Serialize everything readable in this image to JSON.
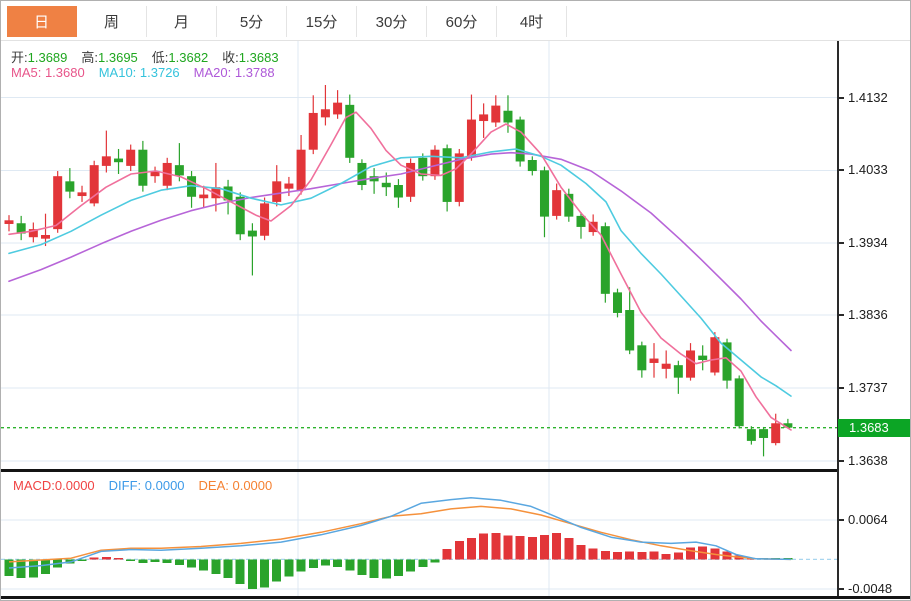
{
  "ui": {
    "tabs": [
      {
        "label": "日",
        "active": true
      },
      {
        "label": "周",
        "active": false
      },
      {
        "label": "月",
        "active": false
      },
      {
        "label": "5分",
        "active": false
      },
      {
        "label": "15分",
        "active": false
      },
      {
        "label": "30分",
        "active": false
      },
      {
        "label": "60分",
        "active": false
      },
      {
        "label": "4时",
        "active": false
      }
    ],
    "ohlc_legend": [
      {
        "label": "开:",
        "value": "1.3689"
      },
      {
        "label": "高:",
        "value": "1.3695"
      },
      {
        "label": "低:",
        "value": "1.3682"
      },
      {
        "label": "收:",
        "value": "1.3683"
      }
    ],
    "ma_legend": [
      {
        "text": "MA5: 1.3680",
        "color": "#e8558a"
      },
      {
        "text": "MA10: 1.3726",
        "color": "#35c3dc"
      },
      {
        "text": "MA20: 1.3788",
        "color": "#ae58d8"
      }
    ],
    "macd_legend": [
      {
        "text": "MACD:0.0000",
        "color": "#f04343"
      },
      {
        "text": "DIFF: 0.0000",
        "color": "#3d9ae8"
      },
      {
        "text": "DEA: 0.0000",
        "color": "#f58233"
      }
    ],
    "price_axis_labels": [
      "1.4132",
      "1.4033",
      "1.3934",
      "1.3836",
      "1.3737",
      "1.3638"
    ],
    "macd_axis_labels": [
      "0.0064",
      "-0.0048"
    ],
    "current_price_label": "1.3683",
    "colors": {
      "up": "#e23539",
      "down": "#2aa32b",
      "ma5": "#f0709c",
      "ma10": "#4ecbe0",
      "ma20": "#b765d8",
      "diff": "#5aa7e0",
      "dea": "#f5913c",
      "grid": "#dfe9f3",
      "zero_dash": "#a8d6ef",
      "price_dash": "#2db32d",
      "badge": "#0ca525",
      "tab_active": "#ef8144"
    }
  },
  "chart_data": {
    "type": "candlestick",
    "price_panel": {
      "title": "",
      "y_ticks": [
        1.4132,
        1.4033,
        1.3934,
        1.3836,
        1.3737,
        1.3638
      ],
      "current_price": 1.3683,
      "grid": true,
      "vertical_gridlines_x": [
        297,
        548
      ],
      "axis_layout": {
        "top_tick_y": 96.5,
        "tick_spacing_px": 72.8,
        "tick_step_value": 0.0099
      },
      "candles_ohlc": [
        [
          1.396,
          1.3972,
          1.395,
          1.3965
        ],
        [
          1.3961,
          1.3971,
          1.3938,
          1.3947
        ],
        [
          1.3942,
          1.3962,
          1.3935,
          1.3953
        ],
        [
          1.394,
          1.3974,
          1.393,
          1.3945
        ],
        [
          1.3953,
          1.4032,
          1.3948,
          1.4025
        ],
        [
          1.4018,
          1.4036,
          1.3995,
          1.4004
        ],
        [
          1.3998,
          1.4012,
          1.399,
          1.4003
        ],
        [
          1.3988,
          1.4046,
          1.3984,
          1.404
        ],
        [
          1.4039,
          1.4087,
          1.403,
          1.4052
        ],
        [
          1.4049,
          1.4062,
          1.4028,
          1.4044
        ],
        [
          1.4039,
          1.4068,
          1.4032,
          1.4061
        ],
        [
          1.4061,
          1.4073,
          1.4004,
          1.4012
        ],
        [
          1.4025,
          1.4038,
          1.4016,
          1.4031
        ],
        [
          1.4012,
          1.405,
          1.4006,
          1.4043
        ],
        [
          1.404,
          1.407,
          1.4018,
          1.4026
        ],
        [
          1.4025,
          1.4032,
          1.3982,
          1.3997
        ],
        [
          1.3995,
          1.4012,
          1.3983,
          1.4
        ],
        [
          1.3995,
          1.4043,
          1.3977,
          1.401
        ],
        [
          1.4011,
          1.402,
          1.3973,
          1.3992
        ],
        [
          1.3997,
          1.4003,
          1.3938,
          1.3946
        ],
        [
          1.3951,
          1.3961,
          1.389,
          1.3943
        ],
        [
          1.3944,
          1.3996,
          1.3938,
          1.3988
        ],
        [
          1.399,
          1.404,
          1.3984,
          1.4018
        ],
        [
          1.4008,
          1.4024,
          1.3998,
          1.4015
        ],
        [
          1.4006,
          1.4081,
          1.4,
          1.4061
        ],
        [
          1.4061,
          1.4135,
          1.4055,
          1.4111
        ],
        [
          1.4105,
          1.4149,
          1.4094,
          1.4116
        ],
        [
          1.4109,
          1.4142,
          1.4103,
          1.4125
        ],
        [
          1.4122,
          1.4136,
          1.4043,
          1.405
        ],
        [
          1.4043,
          1.4048,
          1.4006,
          1.4013
        ],
        [
          1.4025,
          1.4036,
          1.4001,
          1.4018
        ],
        [
          1.4016,
          1.403,
          1.3998,
          1.401
        ],
        [
          1.4013,
          1.4021,
          1.3982,
          1.3996
        ],
        [
          1.3997,
          1.4049,
          1.399,
          1.4043
        ],
        [
          1.405,
          1.4056,
          1.4019,
          1.4025
        ],
        [
          1.4025,
          1.4067,
          1.402,
          1.4061
        ],
        [
          1.4063,
          1.4068,
          1.3977,
          1.399
        ],
        [
          1.399,
          1.4062,
          1.3984,
          1.4056
        ],
        [
          1.4052,
          1.4136,
          1.4046,
          1.4102
        ],
        [
          1.41,
          1.4124,
          1.4077,
          1.4109
        ],
        [
          1.4098,
          1.4135,
          1.4092,
          1.4121
        ],
        [
          1.4114,
          1.4135,
          1.4084,
          1.4098
        ],
        [
          1.4102,
          1.4106,
          1.4038,
          1.4045
        ],
        [
          1.4047,
          1.4052,
          1.4026,
          1.4032
        ],
        [
          1.4033,
          1.4038,
          1.3942,
          1.397
        ],
        [
          1.3971,
          1.4015,
          1.3966,
          1.4006
        ],
        [
          1.4001,
          1.4008,
          1.3963,
          1.397
        ],
        [
          1.3971,
          1.3976,
          1.394,
          1.3956
        ],
        [
          1.3949,
          1.3973,
          1.3944,
          1.3963
        ],
        [
          1.3957,
          1.3962,
          1.3853,
          1.3865
        ],
        [
          1.3867,
          1.3872,
          1.3833,
          1.3839
        ],
        [
          1.3843,
          1.3874,
          1.3783,
          1.3788
        ],
        [
          1.3795,
          1.38,
          1.3751,
          1.3761
        ],
        [
          1.3771,
          1.3798,
          1.3751,
          1.3777
        ],
        [
          1.3763,
          1.3788,
          1.375,
          1.377
        ],
        [
          1.3768,
          1.3774,
          1.3729,
          1.3751
        ],
        [
          1.3751,
          1.3798,
          1.3747,
          1.3788
        ],
        [
          1.3781,
          1.3795,
          1.3761,
          1.3775
        ],
        [
          1.3758,
          1.3813,
          1.3754,
          1.3806
        ],
        [
          1.3799,
          1.3804,
          1.3736,
          1.3747
        ],
        [
          1.375,
          1.3754,
          1.3682,
          1.3685
        ],
        [
          1.3681,
          1.3685,
          1.366,
          1.3665
        ],
        [
          1.3681,
          1.3684,
          1.3644,
          1.3669
        ],
        [
          1.3662,
          1.3702,
          1.3659,
          1.3689
        ],
        [
          1.3689,
          1.3695,
          1.3682,
          1.3683
        ]
      ],
      "ma5_points": [
        [
          8,
          1.3946
        ],
        [
          30,
          1.395
        ],
        [
          55,
          1.3958
        ],
        [
          80,
          1.3985
        ],
        [
          105,
          1.401
        ],
        [
          130,
          1.4028
        ],
        [
          155,
          1.4032
        ],
        [
          180,
          1.4024
        ],
        [
          205,
          1.4008
        ],
        [
          230,
          1.399
        ],
        [
          255,
          1.3972
        ],
        [
          270,
          1.3964
        ],
        [
          290,
          1.3985
        ],
        [
          310,
          1.402
        ],
        [
          330,
          1.4068
        ],
        [
          345,
          1.4105
        ],
        [
          355,
          1.4112
        ],
        [
          370,
          1.409
        ],
        [
          385,
          1.406
        ],
        [
          400,
          1.404
        ],
        [
          420,
          1.4028
        ],
        [
          440,
          1.4026
        ],
        [
          455,
          1.4035
        ],
        [
          470,
          1.4055
        ],
        [
          490,
          1.4085
        ],
        [
          505,
          1.4096
        ],
        [
          520,
          1.4085
        ],
        [
          540,
          1.4055
        ],
        [
          560,
          1.401
        ],
        [
          580,
          1.3975
        ],
        [
          600,
          1.3945
        ],
        [
          620,
          1.3892
        ],
        [
          640,
          1.384
        ],
        [
          660,
          1.3805
        ],
        [
          680,
          1.3783
        ],
        [
          695,
          1.377
        ],
        [
          710,
          1.3775
        ],
        [
          725,
          1.3778
        ],
        [
          740,
          1.376
        ],
        [
          755,
          1.3725
        ],
        [
          770,
          1.3697
        ],
        [
          790,
          1.368
        ]
      ],
      "ma10_points": [
        [
          8,
          1.392
        ],
        [
          40,
          1.3932
        ],
        [
          70,
          1.395
        ],
        [
          100,
          1.3972
        ],
        [
          130,
          1.3992
        ],
        [
          160,
          1.4006
        ],
        [
          190,
          1.4012
        ],
        [
          220,
          1.4008
        ],
        [
          250,
          1.3995
        ],
        [
          280,
          1.3986
        ],
        [
          310,
          1.3995
        ],
        [
          340,
          1.4015
        ],
        [
          370,
          1.4038
        ],
        [
          400,
          1.405
        ],
        [
          430,
          1.4052
        ],
        [
          460,
          1.405
        ],
        [
          490,
          1.4058
        ],
        [
          515,
          1.4062
        ],
        [
          540,
          1.4052
        ],
        [
          560,
          1.404
        ],
        [
          585,
          1.4015
        ],
        [
          605,
          1.399
        ],
        [
          620,
          1.3951
        ],
        [
          640,
          1.392
        ],
        [
          660,
          1.3892
        ],
        [
          680,
          1.3862
        ],
        [
          700,
          1.3832
        ],
        [
          720,
          1.3798
        ],
        [
          740,
          1.3775
        ],
        [
          760,
          1.3752
        ],
        [
          775,
          1.374
        ],
        [
          790,
          1.3726
        ]
      ],
      "ma20_points": [
        [
          8,
          1.3882
        ],
        [
          40,
          1.3898
        ],
        [
          70,
          1.3915
        ],
        [
          100,
          1.3933
        ],
        [
          130,
          1.395
        ],
        [
          160,
          1.3965
        ],
        [
          190,
          1.3978
        ],
        [
          220,
          1.3988
        ],
        [
          250,
          1.3996
        ],
        [
          280,
          1.4002
        ],
        [
          310,
          1.4008
        ],
        [
          340,
          1.4015
        ],
        [
          370,
          1.4022
        ],
        [
          400,
          1.4028
        ],
        [
          430,
          1.4038
        ],
        [
          460,
          1.4048
        ],
        [
          490,
          1.4055
        ],
        [
          510,
          1.4057
        ],
        [
          530,
          1.4055
        ],
        [
          560,
          1.4048
        ],
        [
          590,
          1.4032
        ],
        [
          620,
          1.4005
        ],
        [
          650,
          1.3975
        ],
        [
          680,
          1.3938
        ],
        [
          700,
          1.3912
        ],
        [
          720,
          1.3885
        ],
        [
          740,
          1.3858
        ],
        [
          760,
          1.3828
        ],
        [
          775,
          1.3808
        ],
        [
          790,
          1.3788
        ]
      ]
    },
    "macd_panel": {
      "y_ticks": [
        0.0064,
        -0.0048
      ],
      "zero_line": 0.0,
      "histogram": [
        -0.0027,
        -0.003,
        -0.0029,
        -0.0024,
        -0.0013,
        -0.0007,
        -0.0003,
        0.0003,
        0.0004,
        0.0002,
        -0.0003,
        -0.0006,
        -0.0004,
        -0.0006,
        -0.0009,
        -0.0013,
        -0.0018,
        -0.0024,
        -0.003,
        -0.004,
        -0.0048,
        -0.0046,
        -0.0036,
        -0.0028,
        -0.002,
        -0.0014,
        -0.001,
        -0.0012,
        -0.0018,
        -0.0025,
        -0.003,
        -0.0031,
        -0.0027,
        -0.002,
        -0.0012,
        -0.0005,
        0.0017,
        0.003,
        0.0035,
        0.0042,
        0.0043,
        0.0039,
        0.0038,
        0.0036,
        0.004,
        0.0043,
        0.0035,
        0.0023,
        0.0018,
        0.0014,
        0.0012,
        0.0013,
        0.0012,
        0.0013,
        0.0009,
        0.0011,
        0.0019,
        0.0021,
        0.0018,
        0.0013,
        0.0006,
        0.0002,
        -0.0002,
        -0.0001,
        0.0
      ],
      "diff_points": [
        [
          8,
          -0.0014
        ],
        [
          40,
          -0.001
        ],
        [
          70,
          -0.0004
        ],
        [
          100,
          0.0013
        ],
        [
          130,
          0.0016
        ],
        [
          160,
          0.0015
        ],
        [
          200,
          0.0018
        ],
        [
          240,
          0.0022
        ],
        [
          280,
          0.0028
        ],
        [
          320,
          0.004
        ],
        [
          360,
          0.0055
        ],
        [
          390,
          0.007
        ],
        [
          420,
          0.0091
        ],
        [
          450,
          0.0097
        ],
        [
          470,
          0.01
        ],
        [
          500,
          0.0096
        ],
        [
          530,
          0.0086
        ],
        [
          548,
          0.0074
        ],
        [
          580,
          0.0052
        ],
        [
          610,
          0.0036
        ],
        [
          640,
          0.0028
        ],
        [
          670,
          0.0026
        ],
        [
          695,
          0.0028
        ],
        [
          715,
          0.0022
        ],
        [
          735,
          0.0008
        ],
        [
          755,
          0.0001
        ],
        [
          790,
          0.0
        ]
      ],
      "dea_points": [
        [
          8,
          -0.0004
        ],
        [
          40,
          -0.0001
        ],
        [
          70,
          0.0002
        ],
        [
          100,
          0.0015
        ],
        [
          130,
          0.0018
        ],
        [
          160,
          0.0018
        ],
        [
          200,
          0.0021
        ],
        [
          240,
          0.0026
        ],
        [
          280,
          0.0033
        ],
        [
          320,
          0.0044
        ],
        [
          360,
          0.0058
        ],
        [
          390,
          0.007
        ],
        [
          420,
          0.0074
        ],
        [
          450,
          0.0082
        ],
        [
          480,
          0.0086
        ],
        [
          510,
          0.0082
        ],
        [
          540,
          0.0072
        ],
        [
          570,
          0.0058
        ],
        [
          600,
          0.0044
        ],
        [
          630,
          0.0032
        ],
        [
          660,
          0.0022
        ],
        [
          690,
          0.0014
        ],
        [
          715,
          0.0008
        ],
        [
          735,
          0.0004
        ],
        [
          755,
          0.0001
        ],
        [
          790,
          0.0
        ]
      ]
    }
  }
}
